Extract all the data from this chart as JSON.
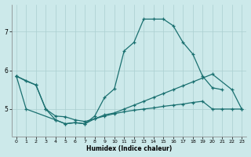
{
  "xlabel": "Humidex (Indice chaleur)",
  "bg_color": "#cce9ea",
  "grid_color": "#aacfd0",
  "line_color": "#1a7070",
  "yticks": [
    5,
    6,
    7
  ],
  "ylim": [
    4.3,
    7.7
  ],
  "xlim": [
    -0.5,
    23.5
  ],
  "s1_x": [
    0,
    1,
    2,
    3,
    4,
    5,
    6,
    7,
    8,
    9,
    10,
    11,
    12,
    13,
    14,
    15,
    16,
    17,
    18,
    19,
    20,
    21
  ],
  "s1_y": [
    5.85,
    5.72,
    5.62,
    5.0,
    4.72,
    4.62,
    4.65,
    4.62,
    4.82,
    5.3,
    5.52,
    6.5,
    6.72,
    7.32,
    7.32,
    7.32,
    7.15,
    6.72,
    6.42,
    5.85,
    5.55,
    5.5
  ],
  "s2_x": [
    0,
    1,
    4,
    5,
    6,
    7,
    8,
    9,
    10,
    11,
    12,
    13,
    14,
    15,
    16,
    17,
    18,
    19,
    20,
    22,
    23
  ],
  "s2_y": [
    5.85,
    5.0,
    4.72,
    4.62,
    4.65,
    4.62,
    4.75,
    4.85,
    4.9,
    5.0,
    5.1,
    5.2,
    5.3,
    5.4,
    5.5,
    5.6,
    5.7,
    5.8,
    5.9,
    5.5,
    5.0
  ],
  "s3_x": [
    0,
    2,
    3,
    4,
    5,
    6,
    7,
    8,
    9,
    10,
    11,
    12,
    13,
    14,
    15,
    16,
    17,
    18,
    19,
    20,
    21,
    22,
    23
  ],
  "s3_y": [
    5.85,
    5.62,
    5.0,
    4.82,
    4.8,
    4.72,
    4.68,
    4.75,
    4.82,
    4.88,
    4.93,
    4.97,
    5.0,
    5.03,
    5.07,
    5.1,
    5.13,
    5.17,
    5.2,
    5.0,
    5.0,
    5.0,
    5.0
  ]
}
